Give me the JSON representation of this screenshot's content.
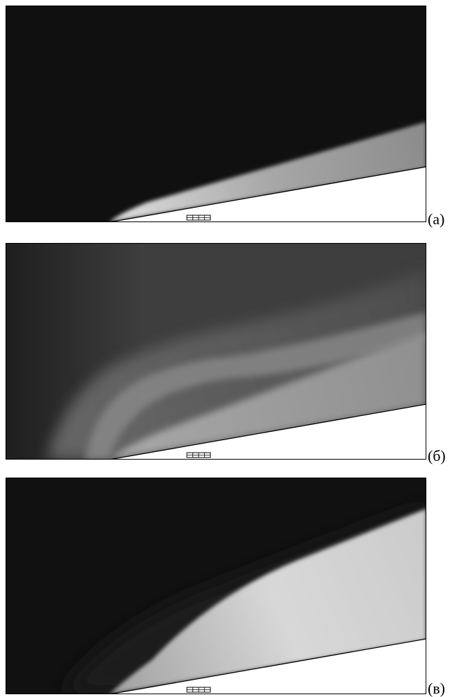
{
  "figure": {
    "panels": [
      {
        "label": "(а)"
      },
      {
        "label": "(б)"
      },
      {
        "label": "(в)"
      }
    ]
  }
}
